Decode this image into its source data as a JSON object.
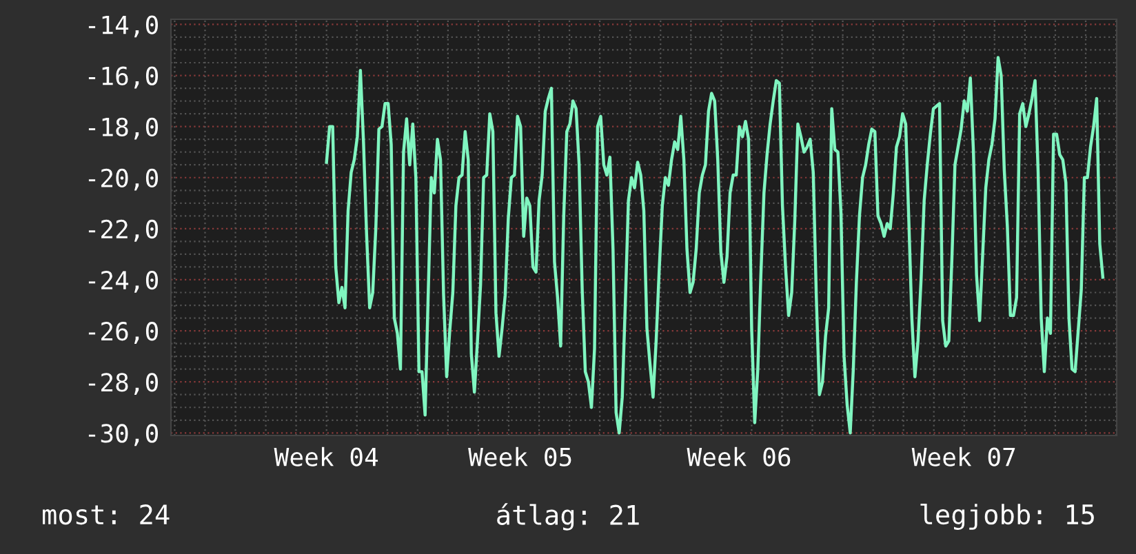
{
  "chart_data": {
    "type": "line",
    "categories": [
      null,
      null,
      null,
      null,
      null,
      null,
      null,
      null,
      null,
      null,
      null,
      null,
      null,
      null,
      null,
      null,
      null,
      null,
      null,
      null,
      null,
      null,
      null,
      null,
      null,
      null,
      null,
      null,
      null,
      null,
      null,
      null,
      null,
      null,
      null,
      null,
      null,
      null,
      null,
      null,
      null,
      null,
      null,
      null,
      null,
      null,
      null,
      null,
      null,
      null,
      "Week 04",
      null,
      null,
      null,
      null,
      null,
      null,
      null,
      null,
      null,
      null,
      null,
      null,
      null,
      null,
      null,
      null,
      null,
      null,
      null,
      null,
      null,
      null,
      null,
      null,
      null,
      null,
      null,
      null,
      null,
      null,
      null,
      null,
      null,
      null,
      null,
      null,
      null,
      null,
      null,
      null,
      null,
      null,
      null,
      null,
      null,
      null,
      null,
      null,
      null,
      null,
      null,
      null,
      null,
      null,
      null,
      null,
      null,
      null,
      null,
      null,
      null,
      null,
      "Week 05",
      null,
      null,
      null,
      null,
      null,
      null,
      null,
      null,
      null,
      null,
      null,
      null,
      null,
      null,
      null,
      null,
      null,
      null,
      null,
      null,
      null,
      null,
      null,
      null,
      null,
      null,
      null,
      null,
      null,
      null,
      null,
      null,
      null,
      null,
      null,
      null,
      null,
      null,
      null,
      null,
      null,
      null,
      null,
      null,
      null,
      null,
      null,
      null,
      null,
      null,
      null,
      null,
      null,
      null,
      null,
      null,
      null,
      null,
      null,
      null,
      null,
      null,
      null,
      null,
      null,
      null,
      null,
      null,
      null,
      null,
      "Week 06",
      null,
      null,
      null,
      null,
      null,
      null,
      null,
      null,
      null,
      null,
      null,
      null,
      null,
      null,
      null,
      null,
      null,
      null,
      null,
      null,
      null,
      null,
      null,
      null,
      null,
      null,
      null,
      null,
      null,
      null,
      null,
      null,
      null,
      null,
      null,
      null,
      null,
      null,
      null,
      null,
      null,
      null,
      null,
      null,
      null,
      null,
      null,
      null,
      null,
      null,
      null,
      null,
      null,
      null,
      null,
      null,
      null,
      null,
      null,
      null,
      null,
      null,
      null,
      null,
      null,
      null,
      null,
      null,
      null,
      null,
      null,
      null,
      "Week 07",
      null,
      null,
      null,
      null,
      null,
      null,
      null,
      null,
      null,
      null,
      null,
      null,
      null,
      null,
      null,
      null,
      null,
      null,
      null,
      null,
      null,
      null,
      null,
      null,
      null,
      null,
      null,
      null,
      null,
      null,
      null,
      null,
      null,
      null,
      null,
      null,
      null,
      null,
      null,
      null,
      null,
      null,
      null,
      null,
      null,
      null,
      null,
      null,
      null
    ],
    "series": [
      {
        "color": "#80f5c0",
        "values": [
          null,
          null,
          null,
          null,
          null,
          null,
          null,
          null,
          null,
          null,
          null,
          null,
          null,
          null,
          null,
          null,
          null,
          null,
          null,
          null,
          null,
          null,
          null,
          null,
          null,
          null,
          null,
          null,
          null,
          null,
          null,
          null,
          null,
          null,
          null,
          null,
          null,
          null,
          null,
          null,
          null,
          null,
          null,
          null,
          null,
          null,
          null,
          null,
          null,
          null,
          -19.4,
          -18.0,
          -18.0,
          -23.5,
          -24.9,
          -24.3,
          -25.1,
          -21.3,
          -19.8,
          -19.3,
          -18.4,
          -15.8,
          -18.6,
          -22.2,
          -25.1,
          -24.5,
          -22.0,
          -18.1,
          -18.0,
          -17.1,
          -17.1,
          -18.7,
          -25.5,
          -26.1,
          -27.5,
          -19.0,
          -17.7,
          -19.5,
          -17.9,
          -20.0,
          -27.6,
          -27.6,
          -29.3,
          -24.6,
          -20.0,
          -20.6,
          -18.5,
          -19.3,
          -24.6,
          -27.8,
          -26.0,
          -24.5,
          -21.1,
          -20.0,
          -19.9,
          -18.2,
          -19.3,
          -26.9,
          -28.4,
          -26.4,
          -24.2,
          -20.0,
          -19.9,
          -17.5,
          -18.2,
          -25.3,
          -27.0,
          -25.9,
          -24.6,
          -21.6,
          -20.0,
          -19.9,
          -17.6,
          -18.0,
          -22.3,
          -20.8,
          -21.1,
          -23.5,
          -23.7,
          -20.9,
          -19.9,
          -17.4,
          -16.9,
          -16.5,
          -23.3,
          -24.7,
          -26.6,
          -21.5,
          -18.2,
          -17.9,
          -17.0,
          -17.3,
          -19.5,
          -24.4,
          -27.6,
          -28.0,
          -29.0,
          -26.7,
          -18.0,
          -17.6,
          -19.5,
          -19.9,
          -19.2,
          -22.8,
          -29.2,
          -30.0,
          -28.6,
          -24.9,
          -20.9,
          -20.0,
          -20.4,
          -19.4,
          -19.9,
          -21.3,
          -25.9,
          -27.3,
          -28.6,
          -26.4,
          -23.6,
          -21.1,
          -20.0,
          -20.3,
          -19.3,
          -18.6,
          -18.9,
          -17.6,
          -19.3,
          -22.8,
          -24.5,
          -24.1,
          -22.8,
          -20.6,
          -19.9,
          -19.5,
          -17.4,
          -16.7,
          -17.0,
          -19.3,
          -22.9,
          -24.1,
          -23.1,
          -20.6,
          -19.9,
          -19.9,
          -18.0,
          -18.4,
          -17.8,
          -18.5,
          -25.9,
          -29.6,
          -27.5,
          -23.8,
          -20.6,
          -19.1,
          -17.9,
          -17.0,
          -16.2,
          -16.3,
          -21.1,
          -23.5,
          -25.4,
          -24.5,
          -21.7,
          -17.9,
          -18.4,
          -19.0,
          -18.8,
          -18.5,
          -19.8,
          -24.7,
          -28.5,
          -28.0,
          -26.2,
          -25.1,
          -17.3,
          -18.9,
          -19.0,
          -21.4,
          -27.0,
          -28.9,
          -30.0,
          -27.5,
          -24.1,
          -21.5,
          -20.0,
          -19.5,
          -18.7,
          -18.1,
          -18.2,
          -21.5,
          -21.8,
          -22.3,
          -21.8,
          -22.0,
          -20.6,
          -18.8,
          -18.4,
          -17.5,
          -17.9,
          -21.6,
          -25.5,
          -27.8,
          -26.4,
          -24.0,
          -20.9,
          -19.5,
          -18.3,
          -17.3,
          -17.2,
          -17.1,
          -25.6,
          -26.6,
          -26.4,
          -23.2,
          -19.5,
          -18.8,
          -18.1,
          -17.0,
          -17.4,
          -16.1,
          -19.0,
          -23.8,
          -25.6,
          -23.0,
          -20.4,
          -19.3,
          -18.7,
          -17.7,
          -15.3,
          -16.0,
          -19.7,
          -21.9,
          -25.4,
          -25.4,
          -24.7,
          -17.5,
          -17.1,
          -18.0,
          -17.5,
          -16.9,
          -16.2,
          -19.8,
          -25.5,
          -27.6,
          -25.5,
          -26.1,
          -18.3,
          -18.3,
          -19.1,
          -19.3,
          -20.2,
          -25.5,
          -27.5,
          -27.6,
          -26.0,
          -24.4,
          -20.0,
          -20.0,
          -18.8,
          -18.0,
          -16.9,
          -22.6,
          -23.9,
          null,
          null,
          null,
          null
        ]
      }
    ],
    "ylim": [
      -30.1,
      -13.8
    ],
    "yticks": [
      {
        "value": -14,
        "label": "-14,0"
      },
      {
        "value": -16,
        "label": "-16,0"
      },
      {
        "value": -18,
        "label": "-18,0"
      },
      {
        "value": -20,
        "label": "-20,0"
      },
      {
        "value": -22,
        "label": "-22,0"
      },
      {
        "value": -24,
        "label": "-24,0"
      },
      {
        "value": -26,
        "label": "-26,0"
      },
      {
        "value": -28,
        "label": "-28,0"
      },
      {
        "value": -30,
        "label": "-30,0"
      }
    ],
    "grid": true,
    "marker": "none",
    "line_style": "solid",
    "annotations": [
      "most: 24",
      "átlag: 21",
      "legjobb: 15"
    ]
  }
}
